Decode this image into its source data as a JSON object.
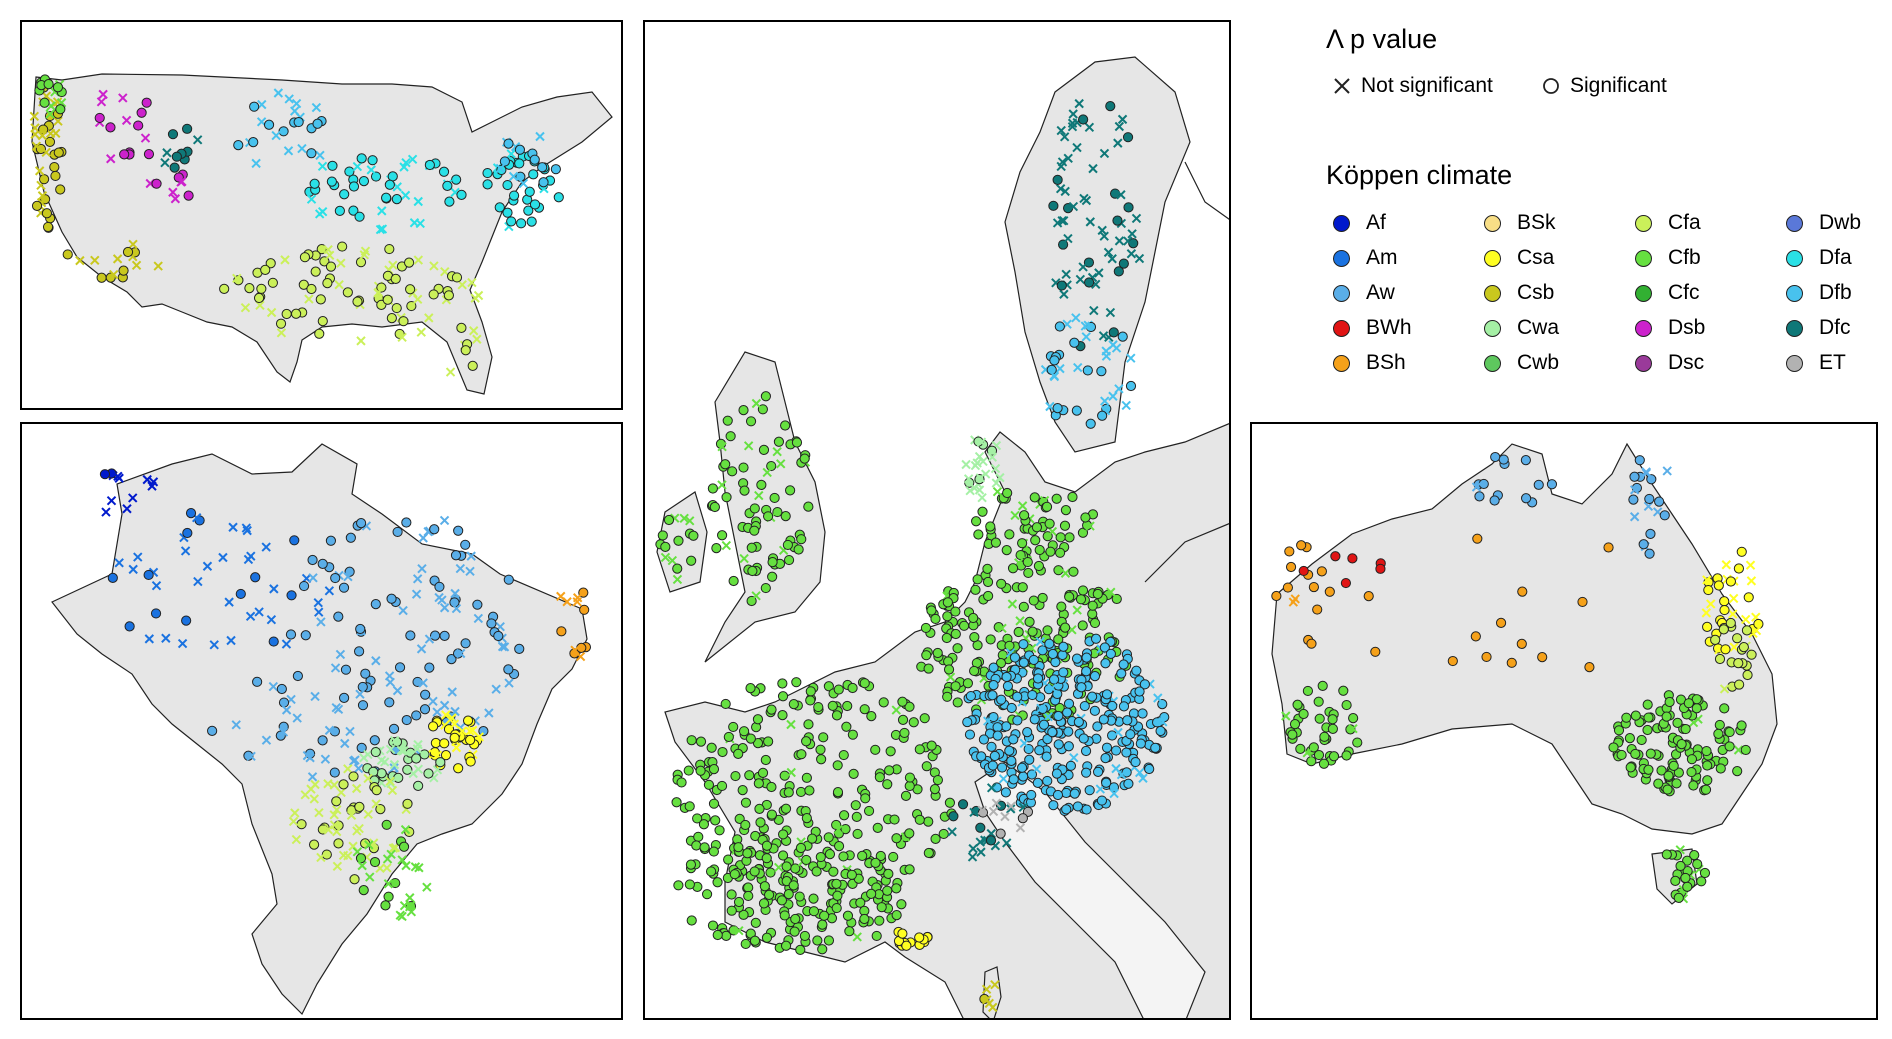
{
  "legend": {
    "p_title": "Λ p value",
    "not_significant": "Not significant",
    "significant": "Significant",
    "koppen_title": "Köppen climate",
    "classes": [
      {
        "code": "Af",
        "color": "#0019cc"
      },
      {
        "code": "Am",
        "color": "#1a72e0"
      },
      {
        "code": "Aw",
        "color": "#5aaee8"
      },
      {
        "code": "BWh",
        "color": "#e01414"
      },
      {
        "code": "BSh",
        "color": "#f5a11a"
      },
      {
        "code": "BSk",
        "color": "#f8de86"
      },
      {
        "code": "Csa",
        "color": "#ffff22"
      },
      {
        "code": "Csb",
        "color": "#c9c81e"
      },
      {
        "code": "Cwa",
        "color": "#a5f0a5"
      },
      {
        "code": "Cwb",
        "color": "#5ec85e"
      },
      {
        "code": "Cfa",
        "color": "#cbf05a"
      },
      {
        "code": "Cfb",
        "color": "#66e040"
      },
      {
        "code": "Cfc",
        "color": "#32b032"
      },
      {
        "code": "Dsb",
        "color": "#cc22cc"
      },
      {
        "code": "Dsc",
        "color": "#9a3a9a"
      },
      {
        "code": "Dwb",
        "color": "#5a78d8"
      },
      {
        "code": "Dfa",
        "color": "#2ae0e6"
      },
      {
        "code": "Dfb",
        "color": "#48c2ee"
      },
      {
        "code": "Dfc",
        "color": "#0f7878"
      },
      {
        "code": "ET",
        "color": "#b2b2b2"
      }
    ]
  },
  "map_style": {
    "land": "#e6e6e6",
    "coast": "#222222"
  }
}
